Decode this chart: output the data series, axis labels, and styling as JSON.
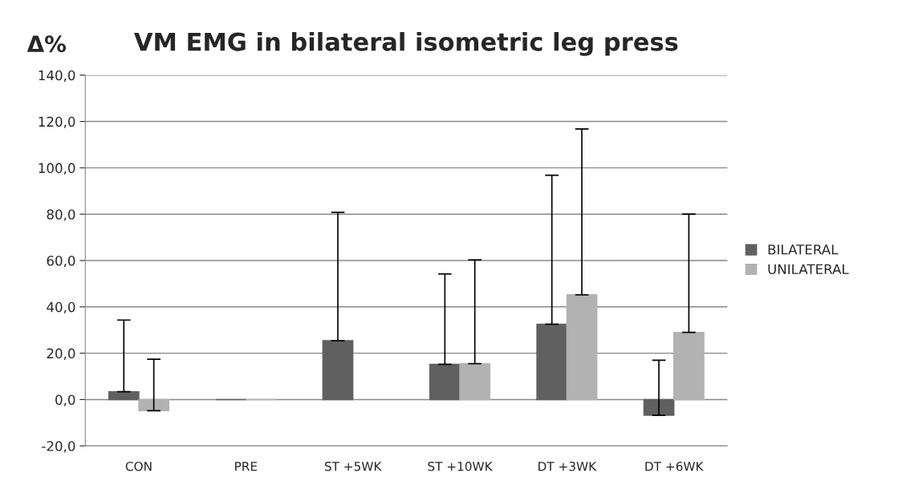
{
  "chart_data": {
    "type": "bar",
    "title": "VM EMG in bilateral isometric leg press",
    "ylabel": "Δ%",
    "categories": [
      "CON",
      "PRE",
      "ST +5WK",
      "ST +10WK",
      "DT +3WK",
      "DT +6WK"
    ],
    "series": [
      {
        "name": "BILATERAL",
        "color": "#606060",
        "values": [
          3.4,
          0,
          25.4,
          15.2,
          32.5,
          -6.8
        ],
        "errors": [
          [
            3.4,
            34.3
          ],
          null,
          [
            25.4,
            80.8
          ],
          [
            15.2,
            54.2
          ],
          [
            32.5,
            96.8
          ],
          [
            -6.8,
            17.0
          ]
        ]
      },
      {
        "name": "UNILATERAL",
        "color": "#b2b2b2",
        "values": [
          -4.8,
          0,
          null,
          15.5,
          45.2,
          29.0
        ],
        "errors": [
          [
            -4.8,
            17.4
          ],
          null,
          null,
          [
            15.5,
            60.3
          ],
          [
            45.2,
            116.8
          ],
          [
            29.0,
            80.0
          ]
        ]
      }
    ],
    "ylim": [
      -20,
      140
    ],
    "yticks": [
      {
        "value": -20,
        "label": "-20,0"
      },
      {
        "value": 0,
        "label": "0,0"
      },
      {
        "value": 20,
        "label": "20,0"
      },
      {
        "value": 40,
        "label": "40,0"
      },
      {
        "value": 60,
        "label": "60,0"
      },
      {
        "value": 80,
        "label": "80,0"
      },
      {
        "value": 100,
        "label": "100,0"
      },
      {
        "value": 120,
        "label": "120,0"
      },
      {
        "value": 140,
        "label": "140,0"
      }
    ],
    "grid": "y",
    "legend": "right"
  }
}
